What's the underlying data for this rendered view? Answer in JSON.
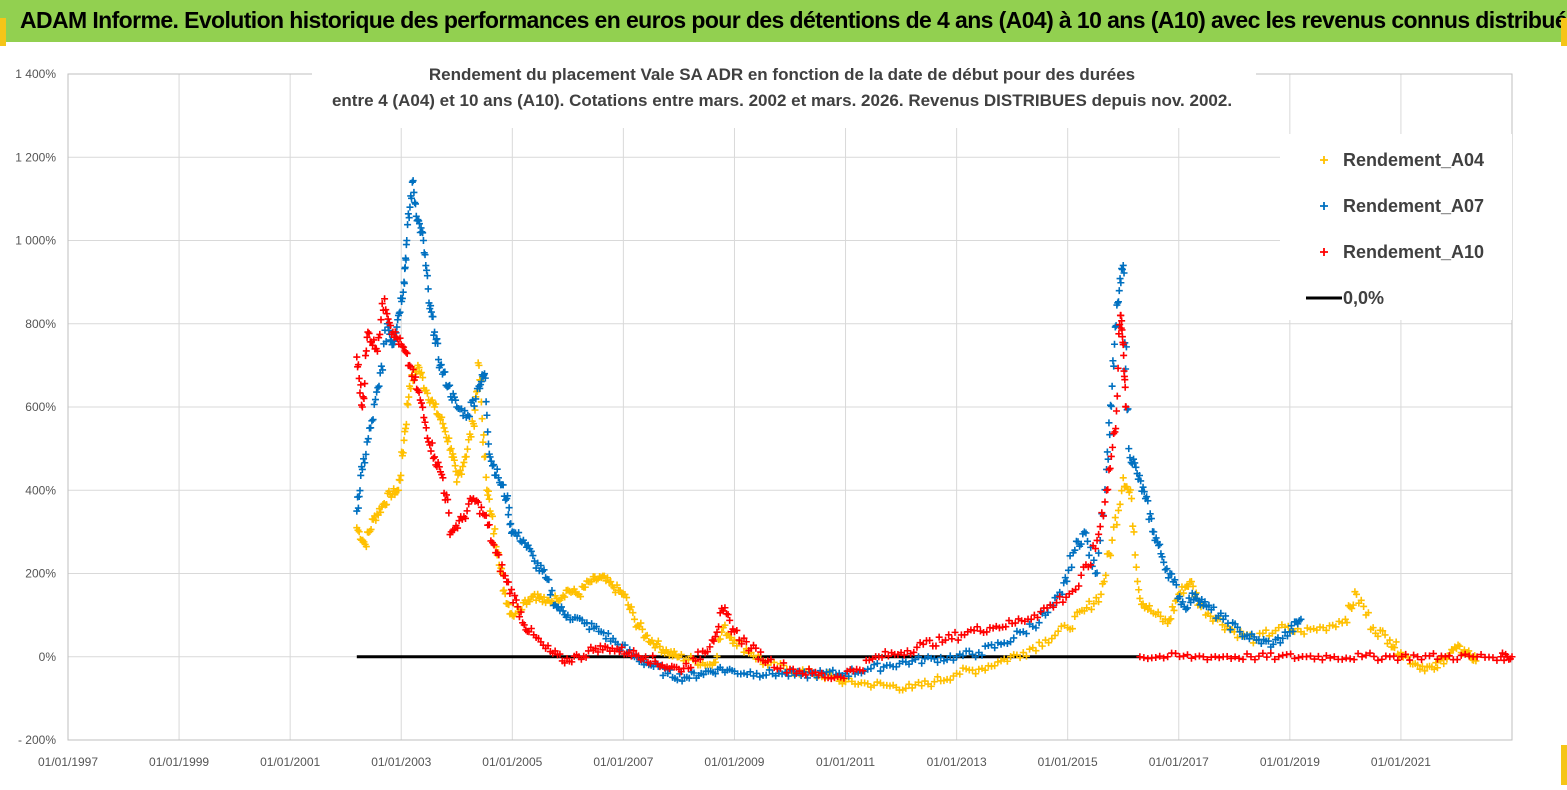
{
  "header": {
    "banner_text": "ADAM Informe. Evolution historique des performances en euros pour des détentions de 4 ans (A04) à 10 ans (A10) avec les revenus connus distribués",
    "banner_color": "#92d050"
  },
  "chart_data": {
    "type": "scatter",
    "title_lines": [
      "Rendement du placement Vale SA ADR en fonction de la date de début pour des durées",
      "entre 4 (A04) et 10 ans (A10). Cotations entre mars. 2002 et mars. 2026. Revenus DISTRIBUES depuis nov. 2002."
    ],
    "x_range": [
      1997.0,
      2023.0
    ],
    "y_range": [
      -200,
      1400
    ],
    "y_ticks": [
      {
        "value": 1400,
        "label": "1 400%"
      },
      {
        "value": 1200,
        "label": "1 200%"
      },
      {
        "value": 1000,
        "label": "1 000%"
      },
      {
        "value": 800,
        "label": "800%"
      },
      {
        "value": 600,
        "label": "600%"
      },
      {
        "value": 400,
        "label": "400%"
      },
      {
        "value": 200,
        "label": "200%"
      },
      {
        "value": 0,
        "label": "0%"
      },
      {
        "value": -200,
        "label": "- 200%"
      }
    ],
    "x_ticks": [
      {
        "value": 1997,
        "label": "01/01/1997"
      },
      {
        "value": 1999,
        "label": "01/01/1999"
      },
      {
        "value": 2001,
        "label": "01/01/2001"
      },
      {
        "value": 2003,
        "label": "01/01/2003"
      },
      {
        "value": 2005,
        "label": "01/01/2005"
      },
      {
        "value": 2007,
        "label": "01/01/2007"
      },
      {
        "value": 2009,
        "label": "01/01/2009"
      },
      {
        "value": 2011,
        "label": "01/01/2011"
      },
      {
        "value": 2013,
        "label": "01/01/2013"
      },
      {
        "value": 2015,
        "label": "01/01/2015"
      },
      {
        "value": 2017,
        "label": "01/01/2017"
      },
      {
        "value": 2019,
        "label": "01/01/2019"
      },
      {
        "value": 2021,
        "label": "01/01/2021"
      }
    ],
    "legend": {
      "position": "top-right",
      "items": [
        {
          "label": "Rendement_A04",
          "color": "#ffc000",
          "marker": "plus"
        },
        {
          "label": "Rendement_A07",
          "color": "#0070c0",
          "marker": "plus"
        },
        {
          "label": "Rendement_A10",
          "color": "#ff0000",
          "marker": "plus"
        },
        {
          "label": "0,0%",
          "color": "#000000",
          "marker": "line"
        }
      ]
    },
    "series": [
      {
        "name": "Rendement_A04",
        "color": "#ffc000",
        "points": [
          [
            2002.2,
            310
          ],
          [
            2002.35,
            270
          ],
          [
            2002.5,
            330
          ],
          [
            2002.65,
            360
          ],
          [
            2002.8,
            390
          ],
          [
            2002.95,
            400
          ],
          [
            2003.05,
            520
          ],
          [
            2003.15,
            650
          ],
          [
            2003.3,
            700
          ],
          [
            2003.45,
            640
          ],
          [
            2003.6,
            600
          ],
          [
            2003.75,
            560
          ],
          [
            2003.9,
            500
          ],
          [
            2004.0,
            420
          ],
          [
            2004.15,
            480
          ],
          [
            2004.3,
            560
          ],
          [
            2004.4,
            700
          ],
          [
            2004.5,
            480
          ],
          [
            2004.6,
            350
          ],
          [
            2004.75,
            250
          ],
          [
            2004.85,
            160
          ],
          [
            2005.0,
            100
          ],
          [
            2005.2,
            130
          ],
          [
            2005.4,
            150
          ],
          [
            2005.6,
            130
          ],
          [
            2005.8,
            140
          ],
          [
            2006.0,
            160
          ],
          [
            2006.2,
            150
          ],
          [
            2006.4,
            180
          ],
          [
            2006.6,
            190
          ],
          [
            2006.8,
            170
          ],
          [
            2007.0,
            150
          ],
          [
            2007.2,
            90
          ],
          [
            2007.4,
            50
          ],
          [
            2007.6,
            30
          ],
          [
            2007.8,
            10
          ],
          [
            2008.0,
            0
          ],
          [
            2008.3,
            -10
          ],
          [
            2008.6,
            -20
          ],
          [
            2008.8,
            70
          ],
          [
            2009.0,
            40
          ],
          [
            2009.3,
            10
          ],
          [
            2009.6,
            -20
          ],
          [
            2010.0,
            -30
          ],
          [
            2010.4,
            -40
          ],
          [
            2010.8,
            -50
          ],
          [
            2011.0,
            -60
          ],
          [
            2011.4,
            -65
          ],
          [
            2011.8,
            -70
          ],
          [
            2012.2,
            -75
          ],
          [
            2012.6,
            -60
          ],
          [
            2013.0,
            -40
          ],
          [
            2013.4,
            -30
          ],
          [
            2013.8,
            -10
          ],
          [
            2014.2,
            10
          ],
          [
            2014.6,
            40
          ],
          [
            2015.0,
            70
          ],
          [
            2015.3,
            110
          ],
          [
            2015.6,
            150
          ],
          [
            2015.8,
            280
          ],
          [
            2016.0,
            430
          ],
          [
            2016.15,
            380
          ],
          [
            2016.3,
            140
          ],
          [
            2016.5,
            110
          ],
          [
            2016.8,
            80
          ],
          [
            2017.0,
            150
          ],
          [
            2017.2,
            180
          ],
          [
            2017.4,
            120
          ],
          [
            2017.7,
            90
          ],
          [
            2018.0,
            60
          ],
          [
            2018.4,
            40
          ],
          [
            2018.8,
            70
          ],
          [
            2019.2,
            60
          ],
          [
            2019.6,
            70
          ],
          [
            2020.0,
            90
          ],
          [
            2020.2,
            150
          ],
          [
            2020.5,
            70
          ],
          [
            2020.8,
            40
          ],
          [
            2021.0,
            10
          ],
          [
            2021.3,
            -20
          ],
          [
            2021.6,
            -30
          ],
          [
            2021.8,
            0
          ],
          [
            2022.0,
            20
          ],
          [
            2022.2,
            10
          ],
          [
            2022.35,
            -10
          ]
        ]
      },
      {
        "name": "Rendement_A07",
        "color": "#0070c0",
        "points": [
          [
            2002.2,
            350
          ],
          [
            2002.3,
            450
          ],
          [
            2002.45,
            550
          ],
          [
            2002.6,
            650
          ],
          [
            2002.75,
            800
          ],
          [
            2002.85,
            750
          ],
          [
            2002.95,
            820
          ],
          [
            2003.05,
            900
          ],
          [
            2003.1,
            1000
          ],
          [
            2003.2,
            1140
          ],
          [
            2003.3,
            1050
          ],
          [
            2003.4,
            1000
          ],
          [
            2003.5,
            850
          ],
          [
            2003.6,
            780
          ],
          [
            2003.7,
            700
          ],
          [
            2003.85,
            650
          ],
          [
            2004.0,
            600
          ],
          [
            2004.2,
            580
          ],
          [
            2004.4,
            650
          ],
          [
            2004.5,
            680
          ],
          [
            2004.6,
            480
          ],
          [
            2004.75,
            430
          ],
          [
            2004.9,
            380
          ],
          [
            2005.0,
            300
          ],
          [
            2005.2,
            280
          ],
          [
            2005.4,
            230
          ],
          [
            2005.6,
            190
          ],
          [
            2005.8,
            120
          ],
          [
            2006.0,
            100
          ],
          [
            2006.3,
            80
          ],
          [
            2006.6,
            60
          ],
          [
            2006.9,
            30
          ],
          [
            2007.2,
            0
          ],
          [
            2007.5,
            -20
          ],
          [
            2007.8,
            -40
          ],
          [
            2008.1,
            -50
          ],
          [
            2008.4,
            -40
          ],
          [
            2008.7,
            -30
          ],
          [
            2009.0,
            -35
          ],
          [
            2009.4,
            -40
          ],
          [
            2009.8,
            -40
          ],
          [
            2010.2,
            -45
          ],
          [
            2010.6,
            -40
          ],
          [
            2011.0,
            -40
          ],
          [
            2011.4,
            -30
          ],
          [
            2011.8,
            -20
          ],
          [
            2012.2,
            -10
          ],
          [
            2012.6,
            -5
          ],
          [
            2013.0,
            0
          ],
          [
            2013.4,
            10
          ],
          [
            2013.8,
            30
          ],
          [
            2014.2,
            60
          ],
          [
            2014.6,
            100
          ],
          [
            2014.9,
            150
          ],
          [
            2015.1,
            250
          ],
          [
            2015.3,
            300
          ],
          [
            2015.5,
            200
          ],
          [
            2015.7,
            450
          ],
          [
            2015.8,
            650
          ],
          [
            2015.9,
            850
          ],
          [
            2016.0,
            940
          ],
          [
            2016.1,
            500
          ],
          [
            2016.25,
            440
          ],
          [
            2016.4,
            380
          ],
          [
            2016.55,
            300
          ],
          [
            2016.7,
            240
          ],
          [
            2016.9,
            180
          ],
          [
            2017.1,
            120
          ],
          [
            2017.3,
            150
          ],
          [
            2017.5,
            120
          ],
          [
            2017.8,
            90
          ],
          [
            2018.1,
            60
          ],
          [
            2018.4,
            40
          ],
          [
            2018.7,
            30
          ],
          [
            2019.0,
            60
          ],
          [
            2019.2,
            90
          ]
        ]
      },
      {
        "name": "Rendement_A10",
        "color": "#ff0000",
        "points": [
          [
            2002.2,
            720
          ],
          [
            2002.3,
            600
          ],
          [
            2002.4,
            780
          ],
          [
            2002.55,
            740
          ],
          [
            2002.7,
            860
          ],
          [
            2002.85,
            780
          ],
          [
            2003.0,
            750
          ],
          [
            2003.15,
            700
          ],
          [
            2003.3,
            640
          ],
          [
            2003.45,
            550
          ],
          [
            2003.6,
            480
          ],
          [
            2003.75,
            430
          ],
          [
            2003.9,
            300
          ],
          [
            2004.1,
            330
          ],
          [
            2004.3,
            380
          ],
          [
            2004.5,
            340
          ],
          [
            2004.7,
            250
          ],
          [
            2004.9,
            180
          ],
          [
            2005.1,
            120
          ],
          [
            2005.3,
            60
          ],
          [
            2005.6,
            20
          ],
          [
            2005.9,
            -10
          ],
          [
            2006.2,
            0
          ],
          [
            2006.5,
            20
          ],
          [
            2006.8,
            20
          ],
          [
            2007.1,
            10
          ],
          [
            2007.4,
            0
          ],
          [
            2007.7,
            -20
          ],
          [
            2008.0,
            -30
          ],
          [
            2008.3,
            -10
          ],
          [
            2008.6,
            40
          ],
          [
            2008.8,
            110
          ],
          [
            2009.0,
            60
          ],
          [
            2009.3,
            20
          ],
          [
            2009.6,
            -10
          ],
          [
            2010.0,
            -30
          ],
          [
            2010.4,
            -40
          ],
          [
            2010.8,
            -50
          ],
          [
            2011.2,
            -30
          ],
          [
            2011.6,
            0
          ],
          [
            2012.0,
            10
          ],
          [
            2012.4,
            30
          ],
          [
            2012.8,
            40
          ],
          [
            2013.2,
            60
          ],
          [
            2013.6,
            70
          ],
          [
            2014.0,
            80
          ],
          [
            2014.4,
            100
          ],
          [
            2014.8,
            130
          ],
          [
            2015.2,
            170
          ],
          [
            2015.5,
            260
          ],
          [
            2015.7,
            400
          ],
          [
            2015.85,
            540
          ],
          [
            2015.95,
            820
          ],
          [
            2016.0,
            750
          ],
          [
            2016.05,
            600
          ]
        ]
      },
      {
        "name": "Rendement_A10",
        "color": "#ff0000",
        "points": [
          [
            2016.3,
            0
          ],
          [
            2016.8,
            0
          ],
          [
            2017.3,
            0
          ],
          [
            2017.8,
            0
          ],
          [
            2018.3,
            0
          ],
          [
            2018.8,
            0
          ],
          [
            2019.3,
            0
          ],
          [
            2019.8,
            0
          ],
          [
            2020.3,
            0
          ],
          [
            2020.8,
            0
          ],
          [
            2021.3,
            0
          ],
          [
            2021.8,
            0
          ],
          [
            2022.3,
            0
          ],
          [
            2022.8,
            0
          ],
          [
            2023.0,
            0
          ]
        ]
      }
    ],
    "zero_line": {
      "value": 0,
      "x_start": 2002.2,
      "x_end": 2016.3,
      "color": "#000000"
    },
    "grid": true
  }
}
